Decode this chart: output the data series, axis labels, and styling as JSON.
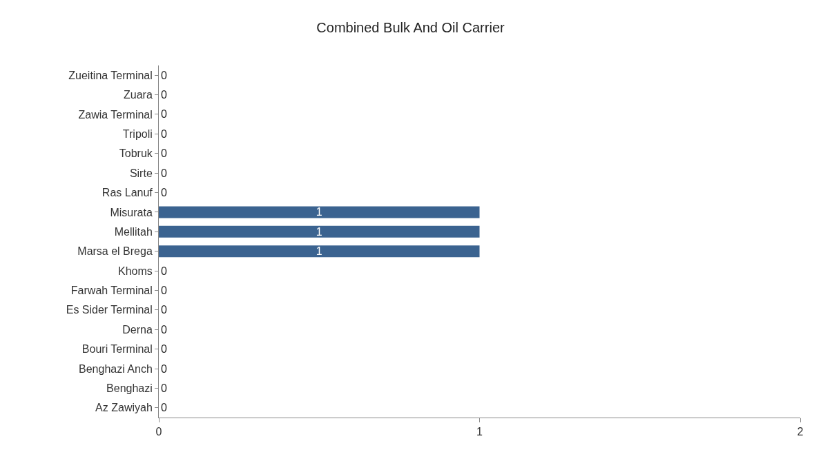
{
  "chart_data": {
    "type": "bar",
    "orientation": "horizontal",
    "title": "Combined Bulk And Oil Carrier",
    "categories": [
      "Zueitina Terminal",
      "Zuara",
      "Zawia Terminal",
      "Tripoli",
      "Tobruk",
      "Sirte",
      "Ras Lanuf",
      "Misurata",
      "Mellitah",
      "Marsa el Brega",
      "Khoms",
      "Farwah Terminal",
      "Es Sider Terminal",
      "Derna",
      "Bouri Terminal",
      "Benghazi Anch",
      "Benghazi",
      "Az Zawiyah"
    ],
    "values": [
      0,
      0,
      0,
      0,
      0,
      0,
      0,
      1,
      1,
      1,
      0,
      0,
      0,
      0,
      0,
      0,
      0,
      0
    ],
    "color": "#3b6390",
    "xlim": [
      0,
      2
    ],
    "xticks": [
      0,
      1,
      2
    ],
    "data_labels": true
  }
}
